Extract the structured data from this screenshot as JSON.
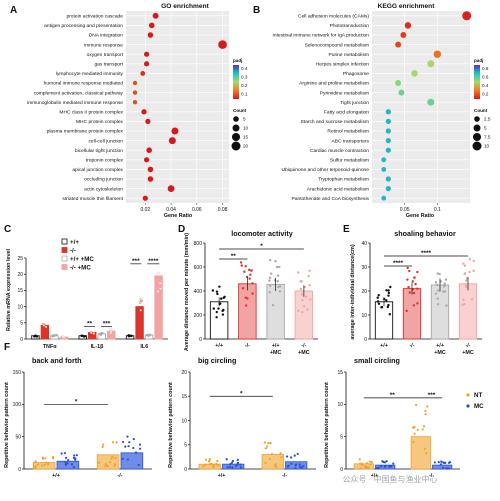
{
  "panels": {
    "A": "A",
    "B": "B",
    "C": "C",
    "D": "D",
    "E": "E",
    "F": "F"
  },
  "colors": {
    "wt": "#111111",
    "ko": "#d9352b",
    "wtmc": "#a9a9a9",
    "komc": "#f2a4a4",
    "nt": "#f0a030",
    "mc": "#2a4fd6",
    "enrich_low": "#d7191c",
    "enrich_high": "#5b2dc8"
  },
  "watermark": "公众号 · 中国鱼与渔业中心",
  "chart_data": [
    {
      "panel": "A",
      "type": "scatter",
      "subtype": "dot-enrichment",
      "title": "GO enrichment",
      "xlabel": "Gene Ratio",
      "xlim": [
        0.005,
        0.085
      ],
      "xticks": [
        0.02,
        0.04,
        0.06,
        0.08
      ],
      "xtick_labels": [
        "0.02",
        "0.04",
        "0.06",
        "0.08"
      ],
      "legend_padj_title": "padj",
      "padj_ticks": [
        "0.4",
        "0.3",
        "0.2",
        "0.1"
      ],
      "legend_count_title": "Count",
      "count_levels": [
        5,
        10,
        15,
        20
      ],
      "terms": [
        {
          "term": "protein activation cascade",
          "x": 0.028,
          "count": 6,
          "padj": 0.0
        },
        {
          "term": "antigen processing and presentation",
          "x": 0.025,
          "count": 5,
          "padj": 0.0
        },
        {
          "term": "DNA integration",
          "x": 0.024,
          "count": 5,
          "padj": 0.0
        },
        {
          "term": "immune response",
          "x": 0.08,
          "count": 18,
          "padj": 0.0
        },
        {
          "term": "oxygen transport",
          "x": 0.021,
          "count": 4,
          "padj": 0.0
        },
        {
          "term": "gas transport",
          "x": 0.021,
          "count": 4,
          "padj": 0.0
        },
        {
          "term": "lymphocyte mediated immunity",
          "x": 0.018,
          "count": 3,
          "padj": 0.02
        },
        {
          "term": "humoral immune response mediated",
          "x": 0.012,
          "count": 2,
          "padj": 0.05
        },
        {
          "term": "complement activation, classical pathway",
          "x": 0.012,
          "count": 2,
          "padj": 0.05
        },
        {
          "term": "immunoglobulin mediated immune response",
          "x": 0.012,
          "count": 2,
          "padj": 0.05
        },
        {
          "term": "MHC class II protein complex",
          "x": 0.019,
          "count": 4,
          "padj": 0.0
        },
        {
          "term": "MHC protein complex",
          "x": 0.022,
          "count": 4,
          "padj": 0.0
        },
        {
          "term": "plasma membrane protein complex",
          "x": 0.043,
          "count": 10,
          "padj": 0.0
        },
        {
          "term": "cell-cell junction",
          "x": 0.041,
          "count": 10,
          "padj": 0.0
        },
        {
          "term": "bicellular tight junction",
          "x": 0.023,
          "count": 5,
          "padj": 0.0
        },
        {
          "term": "troponin complex",
          "x": 0.021,
          "count": 4,
          "padj": 0.0
        },
        {
          "term": "apical junction complex",
          "x": 0.024,
          "count": 5,
          "padj": 0.0
        },
        {
          "term": "occluding junction",
          "x": 0.024,
          "count": 5,
          "padj": 0.0
        },
        {
          "term": "actin cytoskeleton",
          "x": 0.04,
          "count": 9,
          "padj": 0.0
        },
        {
          "term": "striated muscle thin filament",
          "x": 0.02,
          "count": 4,
          "padj": 0.0
        }
      ]
    },
    {
      "panel": "B",
      "type": "scatter",
      "subtype": "dot-enrichment",
      "title": "KEGG enrichment",
      "xlabel": "Gene Ratio",
      "xlim": [
        0.0,
        0.15
      ],
      "xticks": [
        0.05,
        0.1
      ],
      "xtick_labels": [
        "0.05",
        "0.1"
      ],
      "legend_padj_title": "padj",
      "padj_ticks": [
        "0.8",
        "0.6",
        "0.4",
        "0.2"
      ],
      "legend_count_title": "Count",
      "count_levels": [
        2.5,
        5.0,
        7.5,
        10.0
      ],
      "terms": [
        {
          "term": "Cell adhesion molecules (CAMs)",
          "x": 0.145,
          "count": 10,
          "padj": 0.02
        },
        {
          "term": "Phototransduction",
          "x": 0.055,
          "count": 4,
          "padj": 0.05
        },
        {
          "term": "Intestinal immune network for IgA production",
          "x": 0.048,
          "count": 3,
          "padj": 0.08
        },
        {
          "term": "Selenocompound metabolism",
          "x": 0.04,
          "count": 3,
          "padj": 0.1
        },
        {
          "term": "Purine metabolism",
          "x": 0.1,
          "count": 6,
          "padj": 0.2
        },
        {
          "term": "Herpes simplex infection",
          "x": 0.09,
          "count": 5,
          "padj": 0.45
        },
        {
          "term": "Phagosome",
          "x": 0.065,
          "count": 4,
          "padj": 0.45
        },
        {
          "term": "Arginine and proline metabolism",
          "x": 0.04,
          "count": 3,
          "padj": 0.5
        },
        {
          "term": "Pyrimidine metabolism",
          "x": 0.045,
          "count": 3,
          "padj": 0.55
        },
        {
          "term": "Tight junction",
          "x": 0.09,
          "count": 5,
          "padj": 0.55
        },
        {
          "term": "Fatty acid elongation",
          "x": 0.025,
          "count": 2,
          "padj": 0.7
        },
        {
          "term": "Starch and sucrose metabolism",
          "x": 0.025,
          "count": 2,
          "padj": 0.7
        },
        {
          "term": "Retinol metabolism",
          "x": 0.025,
          "count": 2,
          "padj": 0.7
        },
        {
          "term": "ABC transporters",
          "x": 0.025,
          "count": 2,
          "padj": 0.7
        },
        {
          "term": "Cardiac muscle contraction",
          "x": 0.025,
          "count": 2,
          "padj": 0.7
        },
        {
          "term": "Sulfur metabolism",
          "x": 0.018,
          "count": 1.5,
          "padj": 0.7
        },
        {
          "term": "Ubiquinone and other terpenoid-quinone",
          "x": 0.018,
          "count": 1.5,
          "padj": 0.7
        },
        {
          "term": "Tryptophan metabolism",
          "x": 0.025,
          "count": 2,
          "padj": 0.7,
          "highlight": true
        },
        {
          "term": "Arachidonic acid metabolism",
          "x": 0.025,
          "count": 2,
          "padj": 0.7
        },
        {
          "term": "Pantothenate and CoA biosynthesis",
          "x": 0.018,
          "count": 1.5,
          "padj": 0.7
        }
      ]
    },
    {
      "panel": "C",
      "type": "bar",
      "ylabel": "Relative mRNA expression level",
      "ylim": [
        0,
        25
      ],
      "yticks": [
        0,
        5,
        10,
        15,
        20,
        25
      ],
      "categories": [
        "TNFα",
        "IL-1β",
        "IL6"
      ],
      "series": [
        {
          "name": "+/+",
          "values": [
            1.0,
            1.0,
            1.0
          ]
        },
        {
          "name": "-/-",
          "values": [
            4.2,
            2.0,
            10.0
          ]
        },
        {
          "name": "+/+ +MC",
          "values": [
            1.0,
            1.6,
            1.2
          ]
        },
        {
          "name": "-/- +MC",
          "values": [
            0.6,
            2.4,
            19.5
          ]
        }
      ],
      "significance": [
        "**",
        "***",
        "***",
        "****"
      ]
    },
    {
      "panel": "D",
      "type": "bar",
      "title": "locomoter activity",
      "ylabel": "Average distance moved per minute (mm/min)",
      "ylim": [
        0,
        800
      ],
      "yticks": [
        0,
        200,
        400,
        600,
        800
      ],
      "categories": [
        "+/+",
        "-/-",
        "+/+\n+MC",
        "-/-\n+MC"
      ],
      "values": [
        310,
        460,
        455,
        400
      ],
      "significance": [
        "**",
        "*"
      ]
    },
    {
      "panel": "E",
      "type": "bar",
      "title": "shoaling behavior",
      "ylabel": "average inter-individual distance(cm)",
      "ylim": [
        0,
        40
      ],
      "yticks": [
        0,
        10,
        20,
        30,
        40
      ],
      "categories": [
        "+/+",
        "-/-",
        "+/+\n+MC",
        "-/-\n+MC"
      ],
      "values": [
        15.5,
        21.0,
        22.5,
        23.0
      ],
      "significance": [
        "****",
        "****"
      ]
    },
    {
      "panel": "F",
      "type": "bar",
      "subtype": "grouped-with-points",
      "ylabel": "Repetitive behavior pattern count",
      "legend": [
        {
          "name": "NT"
        },
        {
          "name": "MC"
        }
      ],
      "plots": [
        {
          "title": "back and forth",
          "ylim": [
            0,
            150
          ],
          "yticks": [
            0,
            50,
            100,
            150
          ],
          "categories": [
            "+/+",
            "-/-"
          ],
          "NT": [
            10,
            22
          ],
          "MC": [
            12,
            25
          ],
          "significance": [
            "*"
          ]
        },
        {
          "title": "big circling",
          "ylim": [
            0,
            20
          ],
          "yticks": [
            0,
            5,
            10,
            15,
            20
          ],
          "categories": [
            "+/+",
            "-/-"
          ],
          "NT": [
            1,
            3
          ],
          "MC": [
            1,
            1.5
          ],
          "significance": [
            "*"
          ]
        },
        {
          "title": "small circling",
          "ylim": [
            0,
            15
          ],
          "yticks": [
            0,
            5,
            10,
            15
          ],
          "categories": [
            "+/+",
            "-/-"
          ],
          "NT": [
            0.8,
            5
          ],
          "MC": [
            0.6,
            0.6
          ],
          "significance": [
            "**",
            "***"
          ]
        }
      ]
    }
  ]
}
